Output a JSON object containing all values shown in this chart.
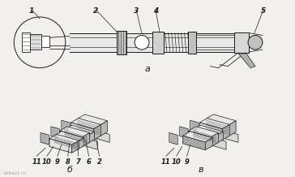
{
  "bg_color": "#f2f0ec",
  "fig_width": 3.64,
  "fig_height": 2.18,
  "dpi": 100,
  "label_a": "а",
  "label_b": "б",
  "label_v": "в",
  "watermark": "oilbest.ru",
  "font_size_labels": 6.5,
  "font_size_sublabels": 8,
  "dark": "#1a1a1a",
  "gray": "#555555",
  "light_gray": "#cccccc",
  "med_gray": "#999999"
}
